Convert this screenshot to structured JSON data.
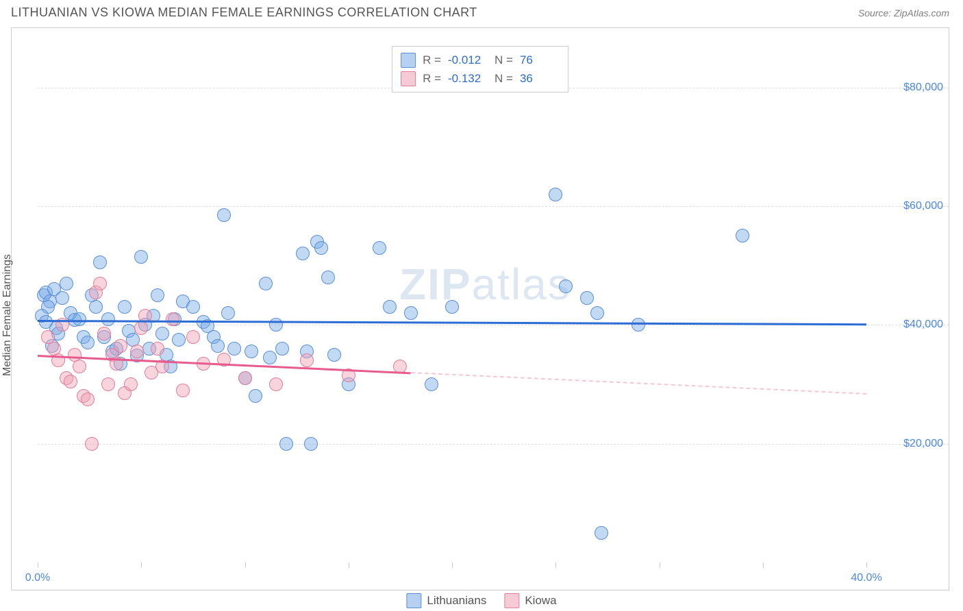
{
  "title": "LITHUANIAN VS KIOWA MEDIAN FEMALE EARNINGS CORRELATION CHART",
  "source_label": "Source: ZipAtlas.com",
  "y_axis_label": "Median Female Earnings",
  "watermark": {
    "bold": "ZIP",
    "rest": "atlas"
  },
  "chart": {
    "type": "scatter",
    "xlim": [
      0,
      40
    ],
    "ylim": [
      0,
      90000
    ],
    "x_ticks": [
      0,
      5,
      10,
      15,
      20,
      25,
      30,
      35,
      40
    ],
    "x_tick_labels": {
      "0": "0.0%",
      "40": "40.0%"
    },
    "y_ticks": [
      20000,
      40000,
      60000,
      80000
    ],
    "y_tick_labels": [
      "$20,000",
      "$40,000",
      "$60,000",
      "$80,000"
    ],
    "background_color": "#ffffff",
    "grid_color": "#dddddd",
    "axis_color": "#cccccc",
    "tick_label_color": "#4a86e8",
    "marker_radius": 10,
    "series": [
      {
        "name": "Lithuanians",
        "color_fill": "rgba(120,170,230,0.45)",
        "color_stroke": "#5a8fd8",
        "trend_color": "#2c6cd4",
        "R": "-0.012",
        "N": "76",
        "trend": {
          "x1": 0,
          "y1": 40800,
          "x2": 40,
          "y2": 40200,
          "dash_from_x": null
        },
        "points": [
          [
            0.3,
            45000
          ],
          [
            0.4,
            45500
          ],
          [
            0.6,
            44000
          ],
          [
            0.8,
            46000
          ],
          [
            0.5,
            43000
          ],
          [
            0.2,
            41500
          ],
          [
            0.9,
            39500
          ],
          [
            1.0,
            38500
          ],
          [
            0.4,
            40500
          ],
          [
            0.7,
            36500
          ],
          [
            1.2,
            44500
          ],
          [
            1.4,
            47000
          ],
          [
            1.6,
            42000
          ],
          [
            1.8,
            40800
          ],
          [
            2.0,
            41000
          ],
          [
            2.2,
            38000
          ],
          [
            2.4,
            37000
          ],
          [
            2.6,
            45000
          ],
          [
            2.8,
            43000
          ],
          [
            3.0,
            50500
          ],
          [
            3.2,
            38000
          ],
          [
            3.4,
            41000
          ],
          [
            3.6,
            35500
          ],
          [
            3.8,
            36000
          ],
          [
            4.0,
            33500
          ],
          [
            4.2,
            43000
          ],
          [
            4.4,
            39000
          ],
          [
            4.6,
            37500
          ],
          [
            4.8,
            34800
          ],
          [
            5.0,
            51500
          ],
          [
            5.2,
            40000
          ],
          [
            5.4,
            36000
          ],
          [
            5.6,
            41500
          ],
          [
            5.8,
            45000
          ],
          [
            6.0,
            38500
          ],
          [
            6.2,
            35000
          ],
          [
            6.4,
            33000
          ],
          [
            6.6,
            41000
          ],
          [
            6.8,
            37500
          ],
          [
            7.0,
            44000
          ],
          [
            7.5,
            43000
          ],
          [
            8.0,
            40500
          ],
          [
            8.2,
            39800
          ],
          [
            8.5,
            38000
          ],
          [
            8.7,
            36500
          ],
          [
            9.0,
            58500
          ],
          [
            9.2,
            42000
          ],
          [
            9.5,
            36000
          ],
          [
            10.0,
            31000
          ],
          [
            10.3,
            35500
          ],
          [
            10.5,
            28000
          ],
          [
            11.0,
            47000
          ],
          [
            11.2,
            34500
          ],
          [
            11.5,
            40000
          ],
          [
            11.8,
            36000
          ],
          [
            12.0,
            20000
          ],
          [
            12.8,
            52000
          ],
          [
            13.0,
            35500
          ],
          [
            13.2,
            20000
          ],
          [
            13.5,
            54000
          ],
          [
            13.7,
            53000
          ],
          [
            14.0,
            48000
          ],
          [
            14.3,
            35000
          ],
          [
            15.0,
            30000
          ],
          [
            16.5,
            53000
          ],
          [
            17.0,
            43000
          ],
          [
            18.0,
            42000
          ],
          [
            19.0,
            30000
          ],
          [
            20.0,
            43000
          ],
          [
            25.0,
            62000
          ],
          [
            25.5,
            46500
          ],
          [
            26.5,
            44500
          ],
          [
            27.0,
            42000
          ],
          [
            27.2,
            5000
          ],
          [
            29.0,
            40000
          ],
          [
            34.0,
            55000
          ]
        ]
      },
      {
        "name": "Kiowa",
        "color_fill": "rgba(240,160,180,0.45)",
        "color_stroke": "#e27d9a",
        "trend_color": "#e75b8d",
        "R": "-0.132",
        "N": "36",
        "trend": {
          "x1": 0,
          "y1": 35000,
          "x2": 40,
          "y2": 28500,
          "dash_from_x": 18
        },
        "points": [
          [
            0.5,
            38000
          ],
          [
            0.8,
            36000
          ],
          [
            1.0,
            34000
          ],
          [
            1.2,
            40000
          ],
          [
            1.4,
            31000
          ],
          [
            1.6,
            30500
          ],
          [
            1.8,
            35000
          ],
          [
            2.0,
            33000
          ],
          [
            2.2,
            28000
          ],
          [
            2.4,
            27500
          ],
          [
            2.6,
            20000
          ],
          [
            2.8,
            45500
          ],
          [
            3.0,
            47000
          ],
          [
            3.2,
            38500
          ],
          [
            3.4,
            30000
          ],
          [
            3.6,
            35000
          ],
          [
            3.8,
            33500
          ],
          [
            4.0,
            36500
          ],
          [
            4.2,
            28500
          ],
          [
            4.5,
            30000
          ],
          [
            4.8,
            35500
          ],
          [
            5.0,
            39500
          ],
          [
            5.2,
            41500
          ],
          [
            5.5,
            32000
          ],
          [
            5.8,
            36000
          ],
          [
            6.0,
            33000
          ],
          [
            6.5,
            41000
          ],
          [
            7.0,
            29000
          ],
          [
            7.5,
            38000
          ],
          [
            8.0,
            33500
          ],
          [
            9.0,
            34200
          ],
          [
            10.0,
            31000
          ],
          [
            11.5,
            30000
          ],
          [
            13.0,
            34000
          ],
          [
            15.0,
            31500
          ],
          [
            17.5,
            33000
          ]
        ]
      }
    ]
  },
  "top_legend": {
    "rows": [
      {
        "swatch": "blue",
        "R_label": "R =",
        "R": "-0.012",
        "N_label": "N =",
        "N": "76"
      },
      {
        "swatch": "pink",
        "R_label": "R =",
        "R": "-0.132",
        "N_label": "N =",
        "N": "36"
      }
    ]
  },
  "bottom_legend": {
    "items": [
      {
        "swatch": "blue",
        "label": "Lithuanians"
      },
      {
        "swatch": "pink",
        "label": "Kiowa"
      }
    ]
  }
}
